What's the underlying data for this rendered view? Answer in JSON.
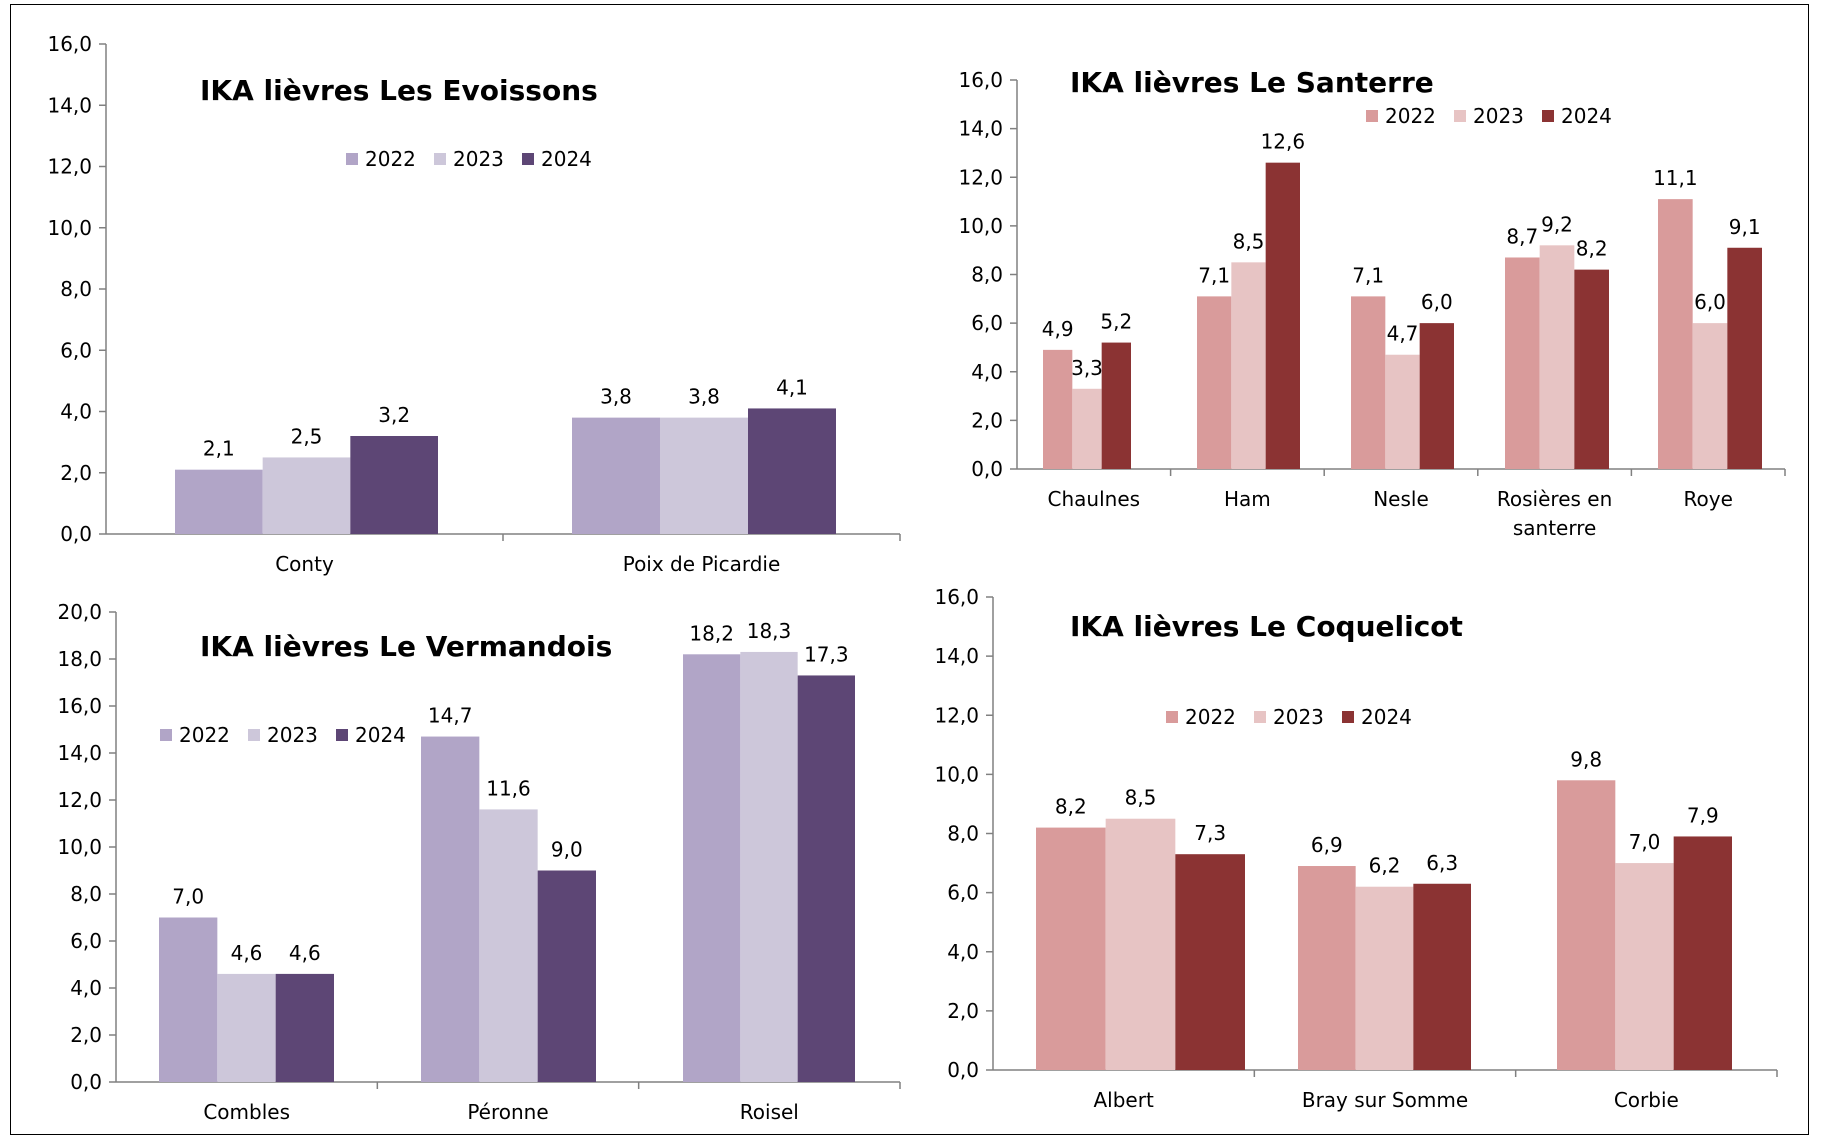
{
  "chart_data": [
    {
      "type": "bar",
      "title": "IKA lièvres Les Evoissons",
      "categories": [
        "Conty",
        "Poix de Picardie"
      ],
      "series": [
        {
          "name": "2022",
          "values": [
            2.1,
            3.8
          ],
          "labels": [
            "2,1",
            "3,8"
          ]
        },
        {
          "name": "2023",
          "values": [
            2.5,
            3.8
          ],
          "labels": [
            "2,5",
            "3,8"
          ]
        },
        {
          "name": "2024",
          "values": [
            3.2,
            4.1
          ],
          "labels": [
            "3,2",
            "4,1"
          ]
        }
      ],
      "colors": [
        "#b1a5c7",
        "#cdc7da",
        "#5d4675"
      ],
      "ylim": [
        0,
        16
      ],
      "yticks": [
        "0,0",
        "2,0",
        "4,0",
        "6,0",
        "8,0",
        "10,0",
        "12,0",
        "14,0",
        "16,0"
      ],
      "legend": "top-center",
      "grid": false
    },
    {
      "type": "bar",
      "title": "IKA lièvres Le Santerre",
      "categories": [
        "Chaulnes",
        "Ham",
        "Nesle",
        "Rosières en santerre",
        "Roye"
      ],
      "series": [
        {
          "name": "2022",
          "values": [
            4.9,
            7.1,
            7.1,
            8.7,
            11.1
          ],
          "labels": [
            "4,9",
            "7,1",
            "7,1",
            "8,7",
            "11,1"
          ]
        },
        {
          "name": "2023",
          "values": [
            3.3,
            8.5,
            4.7,
            9.2,
            6.0
          ],
          "labels": [
            "3,3",
            "8,5",
            "4,7",
            "9,2",
            "6,0"
          ]
        },
        {
          "name": "2024",
          "values": [
            5.2,
            12.6,
            6.0,
            8.2,
            9.1
          ],
          "labels": [
            "5,2",
            "12,6",
            "6,0",
            "8,2",
            "9,1"
          ]
        }
      ],
      "colors": [
        "#d99b9b",
        "#e7c4c4",
        "#8b3333"
      ],
      "ylim": [
        0,
        16
      ],
      "yticks": [
        "0,0",
        "2,0",
        "4,0",
        "6,0",
        "8,0",
        "10,0",
        "12,0",
        "14,0",
        "16,0"
      ],
      "legend": "top-center",
      "grid": false
    },
    {
      "type": "bar",
      "title": "IKA lièvres Le Vermandois",
      "categories": [
        "Combles",
        "Péronne",
        "Roisel"
      ],
      "series": [
        {
          "name": "2022",
          "values": [
            7.0,
            14.7,
            18.2
          ],
          "labels": [
            "7,0",
            "14,7",
            "18,2"
          ]
        },
        {
          "name": "2023",
          "values": [
            4.6,
            11.6,
            18.3
          ],
          "labels": [
            "4,6",
            "11,6",
            "18,3"
          ]
        },
        {
          "name": "2024",
          "values": [
            4.6,
            9.0,
            17.3
          ],
          "labels": [
            "4,6",
            "9,0",
            "17,3"
          ]
        }
      ],
      "colors": [
        "#b1a5c7",
        "#cdc7da",
        "#5d4675"
      ],
      "ylim": [
        0,
        20
      ],
      "yticks": [
        "0,0",
        "2,0",
        "4,0",
        "6,0",
        "8,0",
        "10,0",
        "12,0",
        "14,0",
        "16,0",
        "18,0",
        "20,0"
      ],
      "legend": "top-left",
      "grid": false
    },
    {
      "type": "bar",
      "title": "IKA lièvres Le Coquelicot",
      "categories": [
        "Albert",
        "Bray sur Somme",
        "Corbie"
      ],
      "series": [
        {
          "name": "2022",
          "values": [
            8.2,
            6.9,
            9.8
          ],
          "labels": [
            "8,2",
            "6,9",
            "9,8"
          ]
        },
        {
          "name": "2023",
          "values": [
            8.5,
            6.2,
            7.0
          ],
          "labels": [
            "8,5",
            "6,2",
            "7,0"
          ]
        },
        {
          "name": "2024",
          "values": [
            7.3,
            6.3,
            7.9
          ],
          "labels": [
            "7,3",
            "6,3",
            "7,9"
          ]
        }
      ],
      "colors": [
        "#d99b9b",
        "#e7c4c4",
        "#8b3333"
      ],
      "ylim": [
        0,
        16
      ],
      "yticks": [
        "0,0",
        "2,0",
        "4,0",
        "6,0",
        "8,0",
        "10,0",
        "12,0",
        "14,0",
        "16,0"
      ],
      "legend": "top-center",
      "grid": false
    }
  ]
}
